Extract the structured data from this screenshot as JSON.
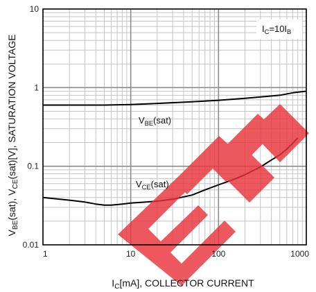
{
  "chart_data": {
    "type": "line",
    "x_scale": "log",
    "y_scale": "log",
    "xlim": [
      1,
      1000
    ],
    "ylim": [
      0.01,
      10
    ],
    "grid": true,
    "xlabel": {
      "prefix": "I",
      "sub": "C",
      "rest": "[mA], COLLECTOR CURRENT"
    },
    "ylabel": [
      {
        "t": "V"
      },
      {
        "t": "BE",
        "sub": true
      },
      {
        "t": "(sat), V"
      },
      {
        "t": "CE",
        "sub": true
      },
      {
        "t": "(sat)[V], SATURATION VOLTAGE"
      }
    ],
    "x_ticks": [
      {
        "value": 1,
        "label": "1"
      },
      {
        "value": 10,
        "label": "10"
      },
      {
        "value": 100,
        "label": "100"
      },
      {
        "value": 1000,
        "label": "1000"
      }
    ],
    "y_ticks": [
      {
        "value": 0.01,
        "label": "0.01"
      },
      {
        "value": 0.1,
        "label": "0.1"
      },
      {
        "value": 1,
        "label": "1"
      },
      {
        "value": 10,
        "label": "10"
      }
    ],
    "condition_box": {
      "text": [
        {
          "t": "I"
        },
        {
          "t": "C",
          "sub": true
        },
        {
          "t": "=10I"
        },
        {
          "t": "B",
          "sub": true
        }
      ]
    },
    "series": [
      {
        "name": "VBE(sat)",
        "label_parts": [
          {
            "t": "V"
          },
          {
            "t": "BE",
            "sub": true
          },
          {
            "t": "(sat)"
          }
        ],
        "x": [
          1,
          2,
          5,
          10,
          20,
          50,
          100,
          200,
          500,
          700,
          1000
        ],
        "y": [
          0.6,
          0.6,
          0.6,
          0.61,
          0.63,
          0.66,
          0.69,
          0.73,
          0.8,
          0.86,
          0.9
        ]
      },
      {
        "name": "VCE(sat)",
        "label_parts": [
          {
            "t": "V"
          },
          {
            "t": "CE",
            "sub": true
          },
          {
            "t": "(sat)"
          }
        ],
        "x": [
          1,
          2,
          3,
          4,
          5,
          6,
          8,
          10,
          15,
          20,
          30,
          50,
          70,
          100,
          150,
          200,
          300,
          400,
          500,
          600,
          700,
          800
        ],
        "y": [
          0.04,
          0.037,
          0.035,
          0.033,
          0.032,
          0.032,
          0.033,
          0.034,
          0.035,
          0.036,
          0.038,
          0.043,
          0.05,
          0.058,
          0.068,
          0.078,
          0.098,
          0.12,
          0.14,
          0.165,
          0.195,
          0.23
        ]
      }
    ],
    "colors": {
      "line": "#000000",
      "grid_major": "#8a8a8a",
      "grid_minor": "#c4c4c4",
      "watermark": "#e8343a"
    }
  }
}
